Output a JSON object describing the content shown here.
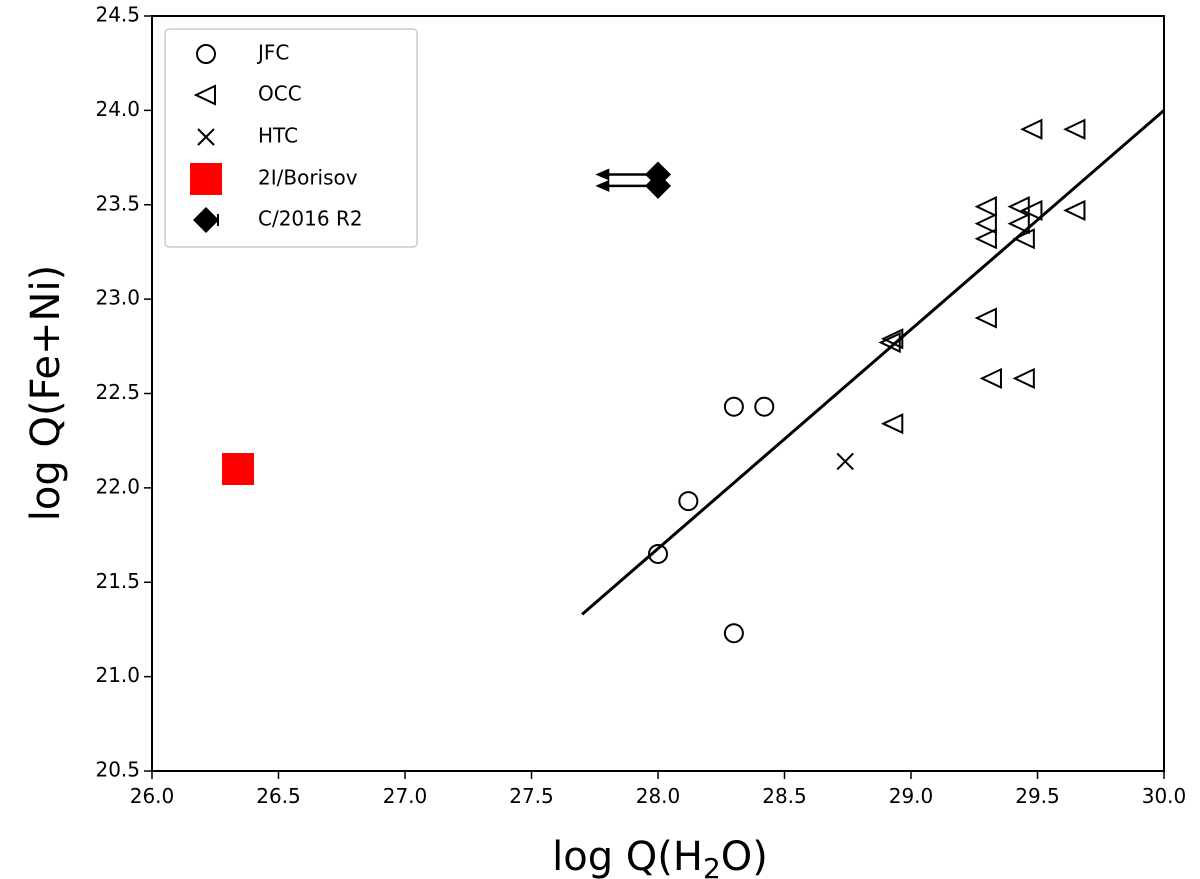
{
  "chart_data": {
    "type": "scatter",
    "xlabel_main": "log Q(H",
    "xlabel_sub": "2",
    "xlabel_end": "O)",
    "ylabel": "log Q(Fe+Ni)",
    "xlim": [
      26.0,
      30.0
    ],
    "ylim": [
      20.5,
      24.5
    ],
    "x_ticks": [
      "26.0",
      "26.5",
      "27.0",
      "27.5",
      "28.0",
      "28.5",
      "29.0",
      "29.5",
      "30.0"
    ],
    "y_ticks": [
      "20.5",
      "21.0",
      "21.5",
      "22.0",
      "22.5",
      "23.0",
      "23.5",
      "24.0",
      "24.5"
    ],
    "grid": false,
    "legend_position": "top-left",
    "series": [
      {
        "name": "JFC",
        "marker": "circle",
        "points": [
          [
            28.0,
            21.65
          ],
          [
            28.12,
            21.93
          ],
          [
            28.3,
            22.43
          ],
          [
            28.42,
            22.43
          ],
          [
            28.3,
            21.23
          ]
        ]
      },
      {
        "name": "OCC",
        "marker": "triangle-left",
        "points": [
          [
            29.48,
            23.9
          ],
          [
            29.65,
            23.9
          ],
          [
            29.3,
            23.49
          ],
          [
            29.3,
            23.4
          ],
          [
            29.3,
            23.32
          ],
          [
            29.43,
            23.49
          ],
          [
            29.43,
            23.4
          ],
          [
            29.45,
            23.32
          ],
          [
            29.48,
            23.47
          ],
          [
            29.65,
            23.47
          ],
          [
            29.3,
            22.9
          ],
          [
            28.93,
            22.79
          ],
          [
            28.92,
            22.77
          ],
          [
            29.32,
            22.58
          ],
          [
            29.45,
            22.58
          ],
          [
            28.93,
            22.34
          ]
        ]
      },
      {
        "name": "HTC",
        "marker": "x",
        "points": [
          [
            28.74,
            22.14
          ]
        ]
      },
      {
        "name": "2I/Borisov",
        "marker": "square",
        "color": "#ff0000",
        "points": [
          [
            26.34,
            22.1
          ]
        ]
      },
      {
        "name": "C/2016 R2",
        "marker": "diamond",
        "color": "#000000",
        "upper_limit_x": true,
        "arrow_to_x": 27.76,
        "points": [
          [
            28.0,
            23.66
          ],
          [
            28.0,
            23.6
          ]
        ]
      }
    ],
    "fit_line": {
      "x": [
        27.7,
        30.0
      ],
      "y": [
        21.33,
        24.0
      ]
    }
  }
}
